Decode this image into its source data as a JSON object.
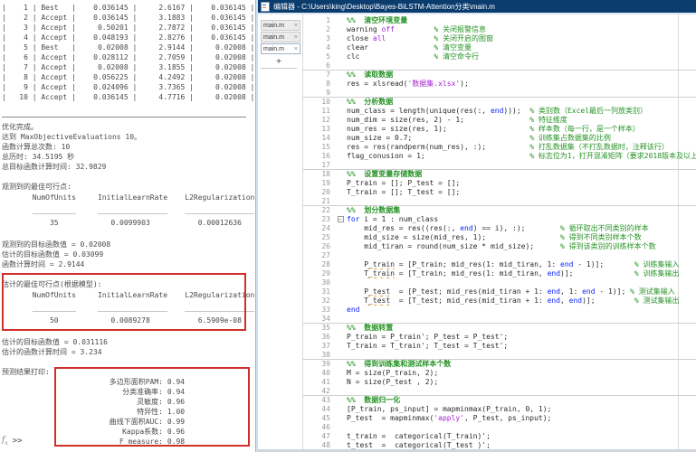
{
  "command_window": {
    "iteration_table": {
      "rows": [
        {
          "iter": "1",
          "result": "Best",
          "objective": "0.036145",
          "runtime": "2.6167",
          "best_objective": "0.036145"
        },
        {
          "iter": "2",
          "result": "Accept",
          "objective": "0.036145",
          "runtime": "3.1883",
          "best_objective": "0.036145"
        },
        {
          "iter": "3",
          "result": "Accept",
          "objective": "0.50201",
          "runtime": "2.7872",
          "best_objective": "0.036145"
        },
        {
          "iter": "4",
          "result": "Accept",
          "objective": "0.048193",
          "runtime": "2.8276",
          "best_objective": "0.036145"
        },
        {
          "iter": "5",
          "result": "Best",
          "objective": "0.02008",
          "runtime": "2.9144",
          "best_objective": "0.02008"
        },
        {
          "iter": "6",
          "result": "Accept",
          "objective": "0.028112",
          "runtime": "2.7059",
          "best_objective": "0.02008"
        },
        {
          "iter": "7",
          "result": "Accept",
          "objective": "0.02008",
          "runtime": "3.1855",
          "best_objective": "0.02008"
        },
        {
          "iter": "8",
          "result": "Accept",
          "objective": "0.056225",
          "runtime": "4.2492",
          "best_objective": "0.02008"
        },
        {
          "iter": "9",
          "result": "Accept",
          "objective": "0.024096",
          "runtime": "3.7365",
          "best_objective": "0.02008"
        },
        {
          "iter": "10",
          "result": "Accept",
          "objective": "0.036145",
          "runtime": "4.7716",
          "best_objective": "0.02008"
        }
      ]
    },
    "summary_lines": [
      "优化完成。",
      "达到 MaxObjectiveEvaluations 10。",
      "函数计算总次数: 10",
      "总历时: 34.5195 秒",
      "总目标函数计算时间: 32.9829"
    ],
    "observed_best": {
      "heading": "观测到的最佳可行点:",
      "columns": [
        "NumOfUnits",
        "InitialLearnRate",
        "L2Regularization"
      ],
      "values": [
        "35",
        "0.0099903",
        "0.00012636"
      ]
    },
    "observed_lines": [
      "观测到的目标函数值 = 0.02008",
      "估计的目标函数值 = 0.03099",
      "函数计算时间 = 2.9144"
    ],
    "estimated_best": {
      "heading": "估计的最佳可行点(根据模型):",
      "columns": [
        "NumOfUnits",
        "InitialLearnRate",
        "L2Regularization"
      ],
      "values": [
        "50",
        "0.0089278",
        "6.5909e-08"
      ]
    },
    "estimated_lines": [
      "估计的目标函数值 = 0.031116",
      "估计的函数计算时间 = 3.234"
    ],
    "prediction_heading": "预测结果打印:",
    "metrics": [
      {
        "label": "多边形面积PAM",
        "value": "0.94"
      },
      {
        "label": "分类准确率",
        "value": "0.94"
      },
      {
        "label": "灵敏度",
        "value": "0.96"
      },
      {
        "label": "特异性",
        "value": "1.00"
      },
      {
        "label": "曲线下面积AUC",
        "value": "0.99"
      },
      {
        "label": "Kappa系数",
        "value": "0.96"
      },
      {
        "label": "F_measure",
        "value": "0.98"
      }
    ],
    "fx_label": "fx",
    "prompt": ">>"
  },
  "editor": {
    "window_title": "编辑器 - C:\\Users\\king\\Desktop\\Bayes-BiLSTM-Attention分类\\main.m",
    "tabs": [
      {
        "label": "main.m",
        "active": false
      },
      {
        "label": "main.m",
        "active": false
      },
      {
        "label": "main.m",
        "active": true
      }
    ],
    "close_glyph": "×",
    "new_tab_label": "+",
    "code_lines": [
      {
        "n": 1,
        "segs": [
          [
            "sec",
            "%%  清空环境变量"
          ]
        ]
      },
      {
        "n": 2,
        "segs": [
          [
            "c",
            "warning "
          ],
          [
            "s",
            "off"
          ],
          [
            "c",
            "         "
          ],
          [
            "m",
            "% 关闭报警信息"
          ]
        ]
      },
      {
        "n": 3,
        "segs": [
          [
            "c",
            "close "
          ],
          [
            "s",
            "all"
          ],
          [
            "c",
            "           "
          ],
          [
            "m",
            "% 关闭开启的图窗"
          ]
        ]
      },
      {
        "n": 4,
        "segs": [
          [
            "c",
            "clear"
          ],
          [
            "c",
            "               "
          ],
          [
            "m",
            "% 清空变量"
          ]
        ]
      },
      {
        "n": 5,
        "segs": [
          [
            "c",
            "clc"
          ],
          [
            "c",
            "                 "
          ],
          [
            "m",
            "% 清空命令行"
          ]
        ]
      },
      {
        "n": 6,
        "segs": []
      },
      {
        "n": 7,
        "div": true,
        "segs": [
          [
            "sec",
            "%%  读取数据"
          ]
        ]
      },
      {
        "n": 8,
        "segs": [
          [
            "c",
            "res = xlsread("
          ],
          [
            "s",
            "'数据集.xlsx'"
          ],
          [
            "c",
            ");"
          ]
        ]
      },
      {
        "n": 9,
        "segs": []
      },
      {
        "n": 10,
        "div": true,
        "segs": [
          [
            "sec",
            "%%  分析数据"
          ]
        ]
      },
      {
        "n": 11,
        "segs": [
          [
            "c",
            "num_class = length(unique(res(:, "
          ],
          [
            "k",
            "end"
          ],
          [
            "c",
            ")));"
          ],
          [
            "c",
            "  "
          ],
          [
            "m",
            "% 类别数（Excel最后一列放类别）"
          ]
        ]
      },
      {
        "n": 12,
        "segs": [
          [
            "c",
            "num_dim = size(res, 2) - 1;"
          ],
          [
            "c",
            "               "
          ],
          [
            "m",
            "% 特征维度"
          ]
        ]
      },
      {
        "n": 13,
        "segs": [
          [
            "c",
            "num_res = size(res, 1);"
          ],
          [
            "c",
            "                   "
          ],
          [
            "m",
            "% 样本数（每一行，是一个样本）"
          ]
        ]
      },
      {
        "n": 14,
        "segs": [
          [
            "c",
            "num_size = 0.7;"
          ],
          [
            "c",
            "                           "
          ],
          [
            "m",
            "% 训练集占数据集的比例"
          ]
        ]
      },
      {
        "n": 15,
        "segs": [
          [
            "c",
            "res = res(randperm(num_res), :);"
          ],
          [
            "c",
            "          "
          ],
          [
            "m",
            "% 打乱数据集（不打乱数据时，注释该行）"
          ]
        ]
      },
      {
        "n": 16,
        "segs": [
          [
            "c",
            "flag_conusion = 1;"
          ],
          [
            "c",
            "                        "
          ],
          [
            "m",
            "% 标志位为1，打开混淆矩阵（要求2018版本及以上）"
          ]
        ]
      },
      {
        "n": 17,
        "segs": []
      },
      {
        "n": 18,
        "div": true,
        "segs": [
          [
            "sec",
            "%%  设置变量存储数据"
          ]
        ]
      },
      {
        "n": 19,
        "segs": [
          [
            "c",
            "P_train = []; P_test = [];"
          ]
        ]
      },
      {
        "n": 20,
        "segs": [
          [
            "c",
            "T_train = []; T_test = [];"
          ]
        ]
      },
      {
        "n": 21,
        "segs": []
      },
      {
        "n": 22,
        "div": true,
        "segs": [
          [
            "sec",
            "%%  划分数据集"
          ]
        ]
      },
      {
        "n": 23,
        "fold": true,
        "segs": [
          [
            "k",
            "for"
          ],
          [
            "c",
            " i = 1 : num_class"
          ]
        ]
      },
      {
        "n": 24,
        "segs": [
          [
            "c",
            "    mid_res = res((res(:, "
          ],
          [
            "k",
            "end"
          ],
          [
            "c",
            ") == i), :);"
          ],
          [
            "c",
            "        "
          ],
          [
            "m",
            "% 循环取出不同类别的样本"
          ]
        ]
      },
      {
        "n": 25,
        "segs": [
          [
            "c",
            "    mid_size = size(mid_res, 1);"
          ],
          [
            "c",
            "                 "
          ],
          [
            "m",
            "% 得到不同类别样本个数"
          ]
        ]
      },
      {
        "n": 26,
        "segs": [
          [
            "c",
            "    mid_tiran = round(num_size * mid_size);"
          ],
          [
            "c",
            "      "
          ],
          [
            "m",
            "% 得到该类别的训练样本个数"
          ]
        ]
      },
      {
        "n": 27,
        "segs": []
      },
      {
        "n": 28,
        "segs": [
          [
            "c",
            "    "
          ],
          [
            "w",
            "P_train"
          ],
          [
            "c",
            " = [P_train; mid_res(1: mid_tiran, 1: "
          ],
          [
            "k",
            "end"
          ],
          [
            "c",
            " - 1)];"
          ],
          [
            "c",
            "       "
          ],
          [
            "m",
            "% 训练集输入"
          ]
        ]
      },
      {
        "n": 29,
        "segs": [
          [
            "c",
            "    "
          ],
          [
            "w",
            "T_train"
          ],
          [
            "c",
            " = [T_train; mid_res(1: mid_tiran, "
          ],
          [
            "k",
            "end"
          ],
          [
            "c",
            ")];"
          ],
          [
            "c",
            "              "
          ],
          [
            "m",
            "% 训练集输出"
          ]
        ]
      },
      {
        "n": 30,
        "segs": []
      },
      {
        "n": 31,
        "segs": [
          [
            "c",
            "    "
          ],
          [
            "w",
            "P_test"
          ],
          [
            "c",
            "  = [P_test; mid_res(mid_tiran + 1: "
          ],
          [
            "k",
            "end"
          ],
          [
            "c",
            ", 1: "
          ],
          [
            "k",
            "end"
          ],
          [
            "c",
            " - 1)]; "
          ],
          [
            "m",
            "% 测试集输入"
          ]
        ]
      },
      {
        "n": 32,
        "segs": [
          [
            "c",
            "    "
          ],
          [
            "w",
            "T_test"
          ],
          [
            "c",
            "  = [T_test; mid_res(mid_tiran + 1: "
          ],
          [
            "k",
            "end"
          ],
          [
            "c",
            ", "
          ],
          [
            "k",
            "end"
          ],
          [
            "c",
            ")];"
          ],
          [
            "c",
            "         "
          ],
          [
            "m",
            "% 测试集输出"
          ]
        ]
      },
      {
        "n": 33,
        "segs": [
          [
            "k",
            "end"
          ]
        ]
      },
      {
        "n": 34,
        "segs": []
      },
      {
        "n": 35,
        "div": true,
        "segs": [
          [
            "sec",
            "%%  数据转置"
          ]
        ]
      },
      {
        "n": 36,
        "segs": [
          [
            "c",
            "P_train = P_train'; P_test = P_test';"
          ]
        ]
      },
      {
        "n": 37,
        "segs": [
          [
            "c",
            "T_train = T_train'; T_test = T_test';"
          ]
        ]
      },
      {
        "n": 38,
        "segs": []
      },
      {
        "n": 39,
        "div": true,
        "segs": [
          [
            "sec",
            "%%  得到训练集和测试样本个数"
          ]
        ]
      },
      {
        "n": 40,
        "segs": [
          [
            "c",
            "M = size(P_train, 2);"
          ]
        ]
      },
      {
        "n": 41,
        "segs": [
          [
            "c",
            "N = size(P_test , 2);"
          ]
        ]
      },
      {
        "n": 42,
        "segs": []
      },
      {
        "n": 43,
        "div": true,
        "segs": [
          [
            "sec",
            "%%  数据归一化"
          ]
        ]
      },
      {
        "n": 44,
        "segs": [
          [
            "c",
            "[P_train, ps_input] = mapminmax(P_train, 0, 1);"
          ]
        ]
      },
      {
        "n": 45,
        "segs": [
          [
            "c",
            "P_test  = mapminmax("
          ],
          [
            "s",
            "'apply'"
          ],
          [
            "c",
            ", P_test, ps_input);"
          ]
        ]
      },
      {
        "n": 46,
        "segs": []
      },
      {
        "n": 47,
        "segs": [
          [
            "c",
            "t_train =  categorical(T_train)';"
          ]
        ]
      },
      {
        "n": 48,
        "segs": [
          [
            "c",
            "t_test  =  categorical(T_test )';"
          ]
        ]
      }
    ]
  },
  "colors": {
    "titlebar": "#0b3c6e",
    "highlight_box": "#d03028",
    "comment_green": "#269326",
    "keyword_blue": "#0d24ff",
    "string_purple": "#a31fd0",
    "warn_underline": "#e0a030"
  }
}
